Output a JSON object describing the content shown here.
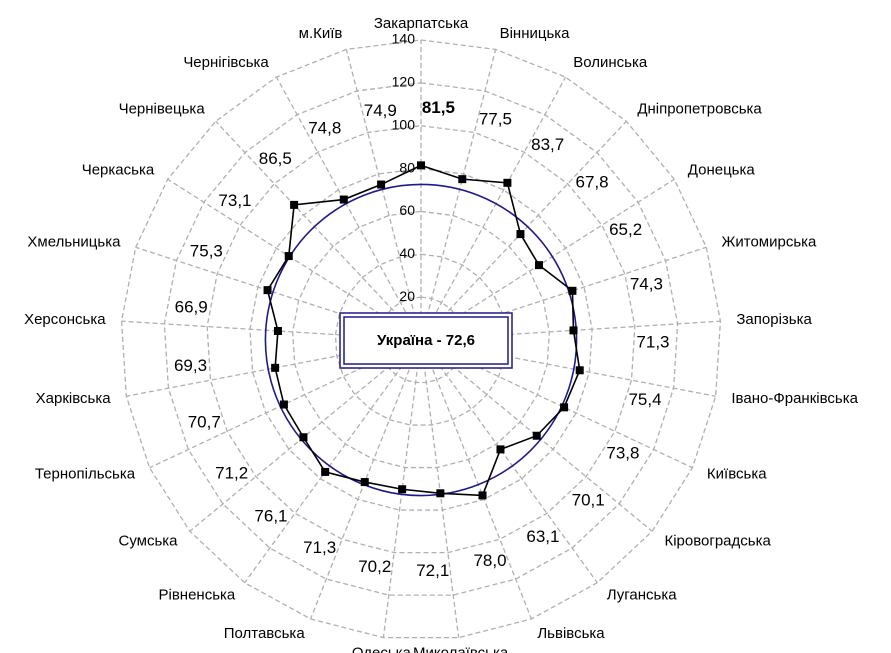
{
  "chart_data": {
    "type": "radar",
    "categories": [
      "Закарпатська",
      "Вінницька",
      "Волинська",
      "Дніпропетровська",
      "Донецька",
      "Житомирська",
      "Запорізька",
      "Івано-Франківська",
      "Київська",
      "Кіровоградська",
      "Луганська",
      "Львівська",
      "Миколаївська",
      "Одеська",
      "Полтавська",
      "Рівненська",
      "Сумська",
      "Тернопільська",
      "Харківська",
      "Херсонська",
      "Хмельницька",
      "Черкаська",
      "Чернівецька",
      "Чернігівська",
      "м.Київ"
    ],
    "series": [
      {
        "color": "#000000",
        "values": [
          81.5,
          77.5,
          83.7,
          67.8,
          65.2,
          74.3,
          71.3,
          75.4,
          73.8,
          70.1,
          63.1,
          78.0,
          72.1,
          70.2,
          71.3,
          76.1,
          71.2,
          70.7,
          69.3,
          66.9,
          75.3,
          73.1,
          86.5,
          74.8,
          74.9
        ],
        "value_labels": [
          "81,5",
          "77,5",
          "83,7",
          "67,8",
          "65,2",
          "74,3",
          "71,3",
          "75,4",
          "73,8",
          "70,1",
          "63,1",
          "78,0",
          "72,1",
          "70,2",
          "71,3",
          "76,1",
          "71,2",
          "70,7",
          "69,3",
          "66,9",
          "75,3",
          "73,1",
          "86,5",
          "74,8",
          "74,9"
        ]
      }
    ],
    "reference": {
      "text": "Україна - 72,6",
      "value": 72.6,
      "color": "#1f1a8a"
    },
    "rlim": [
      0,
      140
    ],
    "rticks": [
      0,
      20,
      40,
      60,
      80,
      100,
      120,
      140
    ],
    "grid": true
  }
}
